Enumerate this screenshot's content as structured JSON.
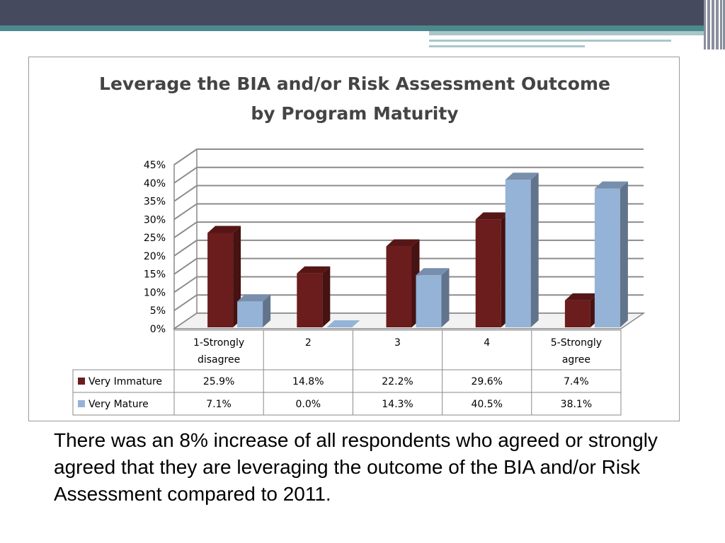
{
  "slide": {
    "caption": "There was an 8% increase of all respondents who agreed or strongly agreed that they are leveraging the outcome of the BIA and/or Risk Assessment compared to 2011."
  },
  "colors": {
    "header_dark": "#464a5e",
    "header_teal": "#4b8a8f",
    "series_immature": "#6b1c1c",
    "series_mature": "#95b3d7"
  },
  "chart_data": {
    "type": "bar",
    "title_line1": "Leverage the BIA and/or Risk Assessment  Outcome",
    "title_line2": "by Program Maturity",
    "categories": [
      [
        "1-Strongly",
        "disagree"
      ],
      [
        "2"
      ],
      [
        "3"
      ],
      [
        "4"
      ],
      [
        "5-Strongly",
        "agree"
      ]
    ],
    "y_ticks": [
      "0%",
      "5%",
      "10%",
      "15%",
      "20%",
      "25%",
      "30%",
      "35%",
      "40%",
      "45%"
    ],
    "ylim": [
      0,
      45
    ],
    "grid": true,
    "legend": "data-table",
    "series": [
      {
        "name": "Very Immature",
        "values": [
          25.9,
          14.8,
          22.2,
          29.6,
          7.4
        ],
        "labels": [
          "25.9%",
          "14.8%",
          "22.2%",
          "29.6%",
          "7.4%"
        ]
      },
      {
        "name": "Very Mature",
        "values": [
          7.1,
          0.0,
          14.3,
          40.5,
          38.1
        ],
        "labels": [
          "7.1%",
          "0.0%",
          "14.3%",
          "40.5%",
          "38.1%"
        ]
      }
    ]
  }
}
